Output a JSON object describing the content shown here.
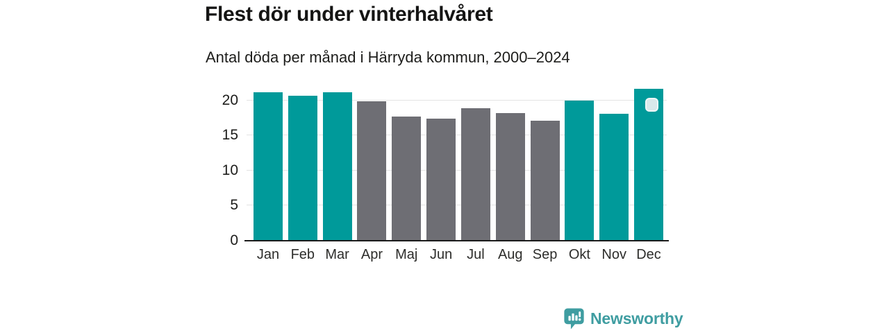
{
  "header": {
    "title": "Flest dör under vinterhalvåret",
    "subtitle": "Antal döda per månad i Härryda kommun, 2000–2024"
  },
  "chart_data": {
    "type": "bar",
    "title": "Flest dör under vinterhalvåret",
    "subtitle": "Antal döda per månad i Härryda kommun, 2000–2024",
    "categories": [
      "Jan",
      "Feb",
      "Mar",
      "Apr",
      "Maj",
      "Jun",
      "Jul",
      "Aug",
      "Sep",
      "Okt",
      "Nov",
      "Dec"
    ],
    "values": [
      21.1,
      20.6,
      21.1,
      19.9,
      17.7,
      17.4,
      18.9,
      18.2,
      17.1,
      20.0,
      18.1,
      21.6
    ],
    "bar_colors": [
      "#009a9a",
      "#009a9a",
      "#009a9a",
      "#6e6e74",
      "#6e6e74",
      "#6e6e74",
      "#6e6e74",
      "#6e6e74",
      "#6e6e74",
      "#009a9a",
      "#009a9a",
      "#009a9a"
    ],
    "highlight_color": "#009a9a",
    "muted_color": "#6e6e74",
    "highlighted_categories": [
      "Jan",
      "Feb",
      "Mar",
      "Okt",
      "Nov",
      "Dec"
    ],
    "xlabel": "",
    "ylabel": "",
    "yticks": [
      0,
      5,
      10,
      15,
      20
    ],
    "ylim": [
      0,
      22
    ],
    "grid": "horizontal",
    "grid_color": "#e3e3e3",
    "axis_color": "#1b1b1b",
    "legend": "none"
  },
  "annotation": {
    "fill": "#d9e9eb",
    "border": "#eef6f7"
  },
  "footer": {
    "brand_label": "Newsworthy",
    "brand_color": "#3f9da1"
  }
}
